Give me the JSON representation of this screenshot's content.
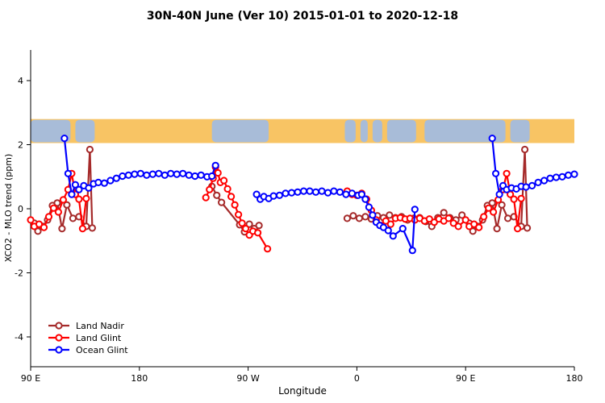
{
  "title": "30N-40N June (Ver 10)   2015-01-01 to 2020-12-18",
  "chart_data": {
    "type": "line",
    "title": "30N-40N June (Ver 10)   2015-01-01 to 2020-12-18",
    "xlabel": "Longitude",
    "ylabel": "XCO2 - MLO trend (ppm)",
    "x_domain": [
      90,
      540
    ],
    "ylim": [
      -4.9,
      4.9
    ],
    "x_ticks": [
      {
        "lon": 90,
        "label": "90 E"
      },
      {
        "lon": 180,
        "label": "180"
      },
      {
        "lon": 270,
        "label": "90 W"
      },
      {
        "lon": 360,
        "label": "0"
      },
      {
        "lon": 450,
        "label": "90 E"
      },
      {
        "lon": 540,
        "label": "180"
      }
    ],
    "y_ticks": [
      {
        "value": -4,
        "label": "-4"
      },
      {
        "value": -2,
        "label": "-2"
      },
      {
        "value": 0,
        "label": "0"
      },
      {
        "value": 2,
        "label": "2"
      },
      {
        "value": 4,
        "label": "4"
      }
    ],
    "grid": false,
    "legend_position": "bottom-left",
    "map_band": {
      "y_range": [
        2.05,
        2.8
      ],
      "ocean_color": "#f8c464",
      "land_color": "#a8bcd8",
      "land_segments": [
        [
          90,
          123
        ],
        [
          127,
          143
        ],
        [
          240,
          287
        ],
        [
          350,
          359
        ],
        [
          363,
          369
        ],
        [
          373,
          381
        ],
        [
          385,
          409
        ],
        [
          416,
          483
        ],
        [
          487,
          503
        ]
      ]
    },
    "series": [
      {
        "name": "Land Nadir",
        "color": "#a52a2a",
        "marker": "open-circle",
        "segments": [
          [
            [
              93,
              -0.45
            ],
            [
              96,
              -0.7
            ],
            [
              100,
              -0.55
            ],
            [
              104,
              -0.35
            ],
            [
              108,
              0.1
            ],
            [
              112,
              0.18
            ],
            [
              116,
              -0.62
            ],
            [
              120,
              0.12
            ],
            [
              125,
              -0.3
            ],
            [
              130,
              -0.25
            ],
            [
              136,
              -0.55
            ],
            [
              139,
              1.85
            ],
            [
              141,
              -0.6
            ]
          ],
          [
            [
              240,
              0.7
            ],
            [
              244,
              0.42
            ],
            [
              248,
              0.2
            ],
            [
              263,
              -0.5
            ],
            [
              267,
              -0.72
            ],
            [
              271,
              -0.48
            ],
            [
              275,
              -0.62
            ],
            [
              279,
              -0.52
            ]
          ],
          [
            [
              352,
              -0.3
            ],
            [
              357,
              -0.22
            ],
            [
              362,
              -0.3
            ],
            [
              367,
              -0.25
            ],
            [
              372,
              -0.32
            ],
            [
              377,
              -0.22
            ],
            [
              382,
              -0.28
            ],
            [
              387,
              -0.2
            ],
            [
              392,
              -0.28
            ],
            [
              397,
              -0.25
            ],
            [
              402,
              -0.35
            ],
            [
              407,
              -0.3
            ],
            [
              412,
              -0.28
            ],
            [
              417,
              -0.4
            ],
            [
              422,
              -0.55
            ],
            [
              427,
              -0.28
            ],
            [
              432,
              -0.12
            ],
            [
              437,
              -0.28
            ],
            [
              442,
              -0.35
            ],
            [
              447,
              -0.2
            ],
            [
              453,
              -0.45
            ],
            [
              456,
              -0.7
            ],
            [
              460,
              -0.55
            ],
            [
              464,
              -0.35
            ],
            [
              468,
              0.1
            ],
            [
              472,
              0.18
            ],
            [
              476,
              -0.62
            ],
            [
              480,
              0.12
            ],
            [
              485,
              -0.3
            ],
            [
              490,
              -0.25
            ],
            [
              496,
              -0.55
            ],
            [
              499,
              1.85
            ],
            [
              501,
              -0.6
            ]
          ]
        ]
      },
      {
        "name": "Land Glint",
        "color": "#ff0000",
        "marker": "open-circle",
        "segments": [
          [
            [
              90,
              -0.35
            ],
            [
              93,
              -0.55
            ],
            [
              97,
              -0.48
            ],
            [
              101,
              -0.58
            ],
            [
              105,
              -0.25
            ],
            [
              109,
              0.02
            ],
            [
              113,
              -0.1
            ],
            [
              117,
              0.28
            ],
            [
              121,
              0.6
            ],
            [
              124,
              1.1
            ],
            [
              127,
              0.45
            ],
            [
              130,
              0.3
            ],
            [
              133,
              -0.62
            ],
            [
              136,
              0.32
            ]
          ],
          [
            [
              235,
              0.35
            ],
            [
              238,
              0.6
            ],
            [
              241,
              0.95
            ],
            [
              243,
              1.3
            ],
            [
              245,
              1.12
            ],
            [
              247,
              0.82
            ],
            [
              250,
              0.88
            ],
            [
              253,
              0.62
            ],
            [
              256,
              0.38
            ],
            [
              259,
              0.12
            ],
            [
              262,
              -0.18
            ],
            [
              265,
              -0.45
            ],
            [
              268,
              -0.62
            ],
            [
              271,
              -0.82
            ],
            [
              274,
              -0.7
            ],
            [
              278,
              -0.75
            ],
            [
              286,
              -1.25
            ]
          ],
          [
            [
              352,
              0.55
            ],
            [
              356,
              0.45
            ],
            [
              360,
              0.42
            ],
            [
              364,
              0.48
            ],
            [
              368,
              0.3
            ],
            [
              372,
              -0.05
            ],
            [
              376,
              -0.35
            ],
            [
              380,
              -0.52
            ],
            [
              384,
              -0.38
            ],
            [
              388,
              -0.48
            ],
            [
              392,
              -0.3
            ],
            [
              396,
              -0.28
            ],
            [
              400,
              -0.32
            ],
            [
              404,
              -0.3
            ],
            [
              408,
              -0.35
            ],
            [
              412,
              -0.3
            ],
            [
              416,
              -0.38
            ],
            [
              420,
              -0.32
            ],
            [
              424,
              -0.42
            ],
            [
              428,
              -0.32
            ],
            [
              432,
              -0.38
            ],
            [
              436,
              -0.3
            ],
            [
              440,
              -0.45
            ],
            [
              444,
              -0.55
            ],
            [
              450,
              -0.35
            ],
            [
              453,
              -0.55
            ],
            [
              457,
              -0.48
            ],
            [
              461,
              -0.58
            ],
            [
              465,
              -0.25
            ],
            [
              469,
              0.02
            ],
            [
              473,
              -0.1
            ],
            [
              477,
              0.28
            ],
            [
              481,
              0.6
            ],
            [
              484,
              1.1
            ],
            [
              487,
              0.45
            ],
            [
              490,
              0.3
            ],
            [
              493,
              -0.62
            ],
            [
              496,
              0.32
            ]
          ]
        ]
      },
      {
        "name": "Ocean Glint",
        "color": "#0000ff",
        "marker": "open-circle",
        "segments": [
          [
            [
              118,
              2.2
            ],
            [
              121,
              1.1
            ],
            [
              124,
              0.45
            ],
            [
              127,
              0.75
            ],
            [
              130,
              0.6
            ],
            [
              134,
              0.72
            ],
            [
              138,
              0.65
            ],
            [
              142,
              0.78
            ],
            [
              146,
              0.82
            ],
            [
              151,
              0.8
            ],
            [
              156,
              0.88
            ],
            [
              161,
              0.95
            ],
            [
              166,
              1.02
            ],
            [
              171,
              1.05
            ],
            [
              176,
              1.08
            ],
            [
              181,
              1.1
            ],
            [
              186,
              1.05
            ],
            [
              191,
              1.08
            ],
            [
              196,
              1.1
            ],
            [
              201,
              1.05
            ],
            [
              206,
              1.1
            ],
            [
              211,
              1.08
            ],
            [
              216,
              1.1
            ],
            [
              221,
              1.05
            ],
            [
              226,
              1.02
            ],
            [
              231,
              1.05
            ],
            [
              236,
              1.0
            ],
            [
              240,
              1.02
            ],
            [
              243,
              1.35
            ]
          ],
          [
            [
              277,
              0.45
            ],
            [
              280,
              0.3
            ],
            [
              283,
              0.38
            ],
            [
              287,
              0.32
            ],
            [
              291,
              0.4
            ],
            [
              296,
              0.42
            ],
            [
              301,
              0.48
            ],
            [
              306,
              0.5
            ],
            [
              311,
              0.52
            ],
            [
              316,
              0.55
            ],
            [
              321,
              0.55
            ],
            [
              326,
              0.52
            ],
            [
              331,
              0.55
            ],
            [
              336,
              0.5
            ],
            [
              341,
              0.55
            ],
            [
              346,
              0.52
            ],
            [
              351,
              0.45
            ],
            [
              356,
              0.48
            ],
            [
              361,
              0.42
            ]
          ],
          [
            [
              364,
              0.45
            ],
            [
              367,
              0.3
            ],
            [
              370,
              0.05
            ],
            [
              373,
              -0.2
            ],
            [
              376,
              -0.42
            ],
            [
              379,
              -0.52
            ],
            [
              382,
              -0.58
            ],
            [
              386,
              -0.68
            ],
            [
              390,
              -0.85
            ],
            [
              398,
              -0.62
            ],
            [
              406,
              -1.3
            ],
            [
              408,
              -0.02
            ]
          ],
          [
            [
              472,
              2.2
            ],
            [
              475,
              1.1
            ],
            [
              478,
              0.45
            ],
            [
              481,
              0.72
            ],
            [
              484,
              0.6
            ],
            [
              488,
              0.65
            ],
            [
              492,
              0.62
            ],
            [
              496,
              0.7
            ],
            [
              500,
              0.68
            ],
            [
              505,
              0.72
            ],
            [
              510,
              0.82
            ],
            [
              515,
              0.88
            ],
            [
              520,
              0.95
            ],
            [
              525,
              0.98
            ],
            [
              530,
              1.0
            ],
            [
              535,
              1.05
            ],
            [
              540,
              1.08
            ]
          ]
        ]
      }
    ],
    "legend": {
      "entries": [
        "Land Nadir",
        "Land Glint",
        "Ocean Glint"
      ]
    }
  }
}
